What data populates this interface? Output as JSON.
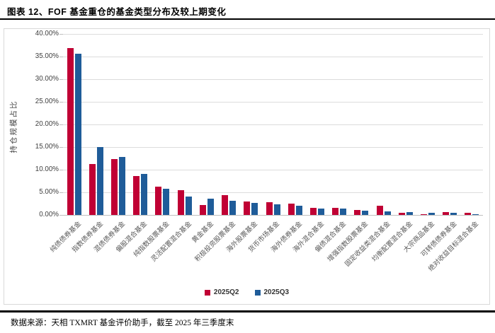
{
  "header": {
    "title": "图表 12、FOF 基金重仓的基金类型分布及较上期变化"
  },
  "chart_data": {
    "type": "bar",
    "title": "FOF 基金重仓的基金类型分布及较上期变化",
    "xlabel": "",
    "ylabel": "持仓规模占比",
    "ylim": [
      0,
      40
    ],
    "ytick_step": 5,
    "ytick_labels": [
      "0.00%",
      "5.00%",
      "10.00%",
      "15.00%",
      "20.00%",
      "25.00%",
      "30.00%",
      "35.00%",
      "40.00%"
    ],
    "grid": true,
    "legend_position": "bottom",
    "categories": [
      "纯债债券基金",
      "指数债券基金",
      "混债债券基金",
      "偏股混合基金",
      "纯指数股票基金",
      "灵活配置混合基金",
      "黄金基金",
      "积极投资股票基金",
      "海外股票基金",
      "货币市场基金",
      "海外债券基金",
      "海外混合基金",
      "偏债混合基金",
      "增强指数股票基金",
      "固定收益类混合基金",
      "均衡配置混合基金",
      "大宗商品基金",
      "可转债债券基金",
      "绝对收益目标混合基金"
    ],
    "series": [
      {
        "name": "2025Q2",
        "color": "#c00034",
        "values": [
          36.9,
          11.2,
          12.3,
          8.6,
          6.2,
          5.4,
          2.2,
          4.3,
          2.9,
          2.8,
          2.5,
          1.6,
          1.5,
          1.1,
          2.0,
          0.5,
          0.2,
          0.6,
          0.5
        ]
      },
      {
        "name": "2025Q3",
        "color": "#1f5c99",
        "values": [
          35.6,
          15.0,
          12.8,
          9.0,
          5.8,
          4.0,
          3.6,
          3.1,
          2.7,
          2.3,
          2.1,
          1.4,
          1.4,
          1.0,
          0.8,
          0.6,
          0.5,
          0.5,
          0.2
        ]
      }
    ]
  },
  "footer": {
    "source": "数据来源：天相 TXMRT 基金评价助手，截至 2025 年三季度末"
  }
}
